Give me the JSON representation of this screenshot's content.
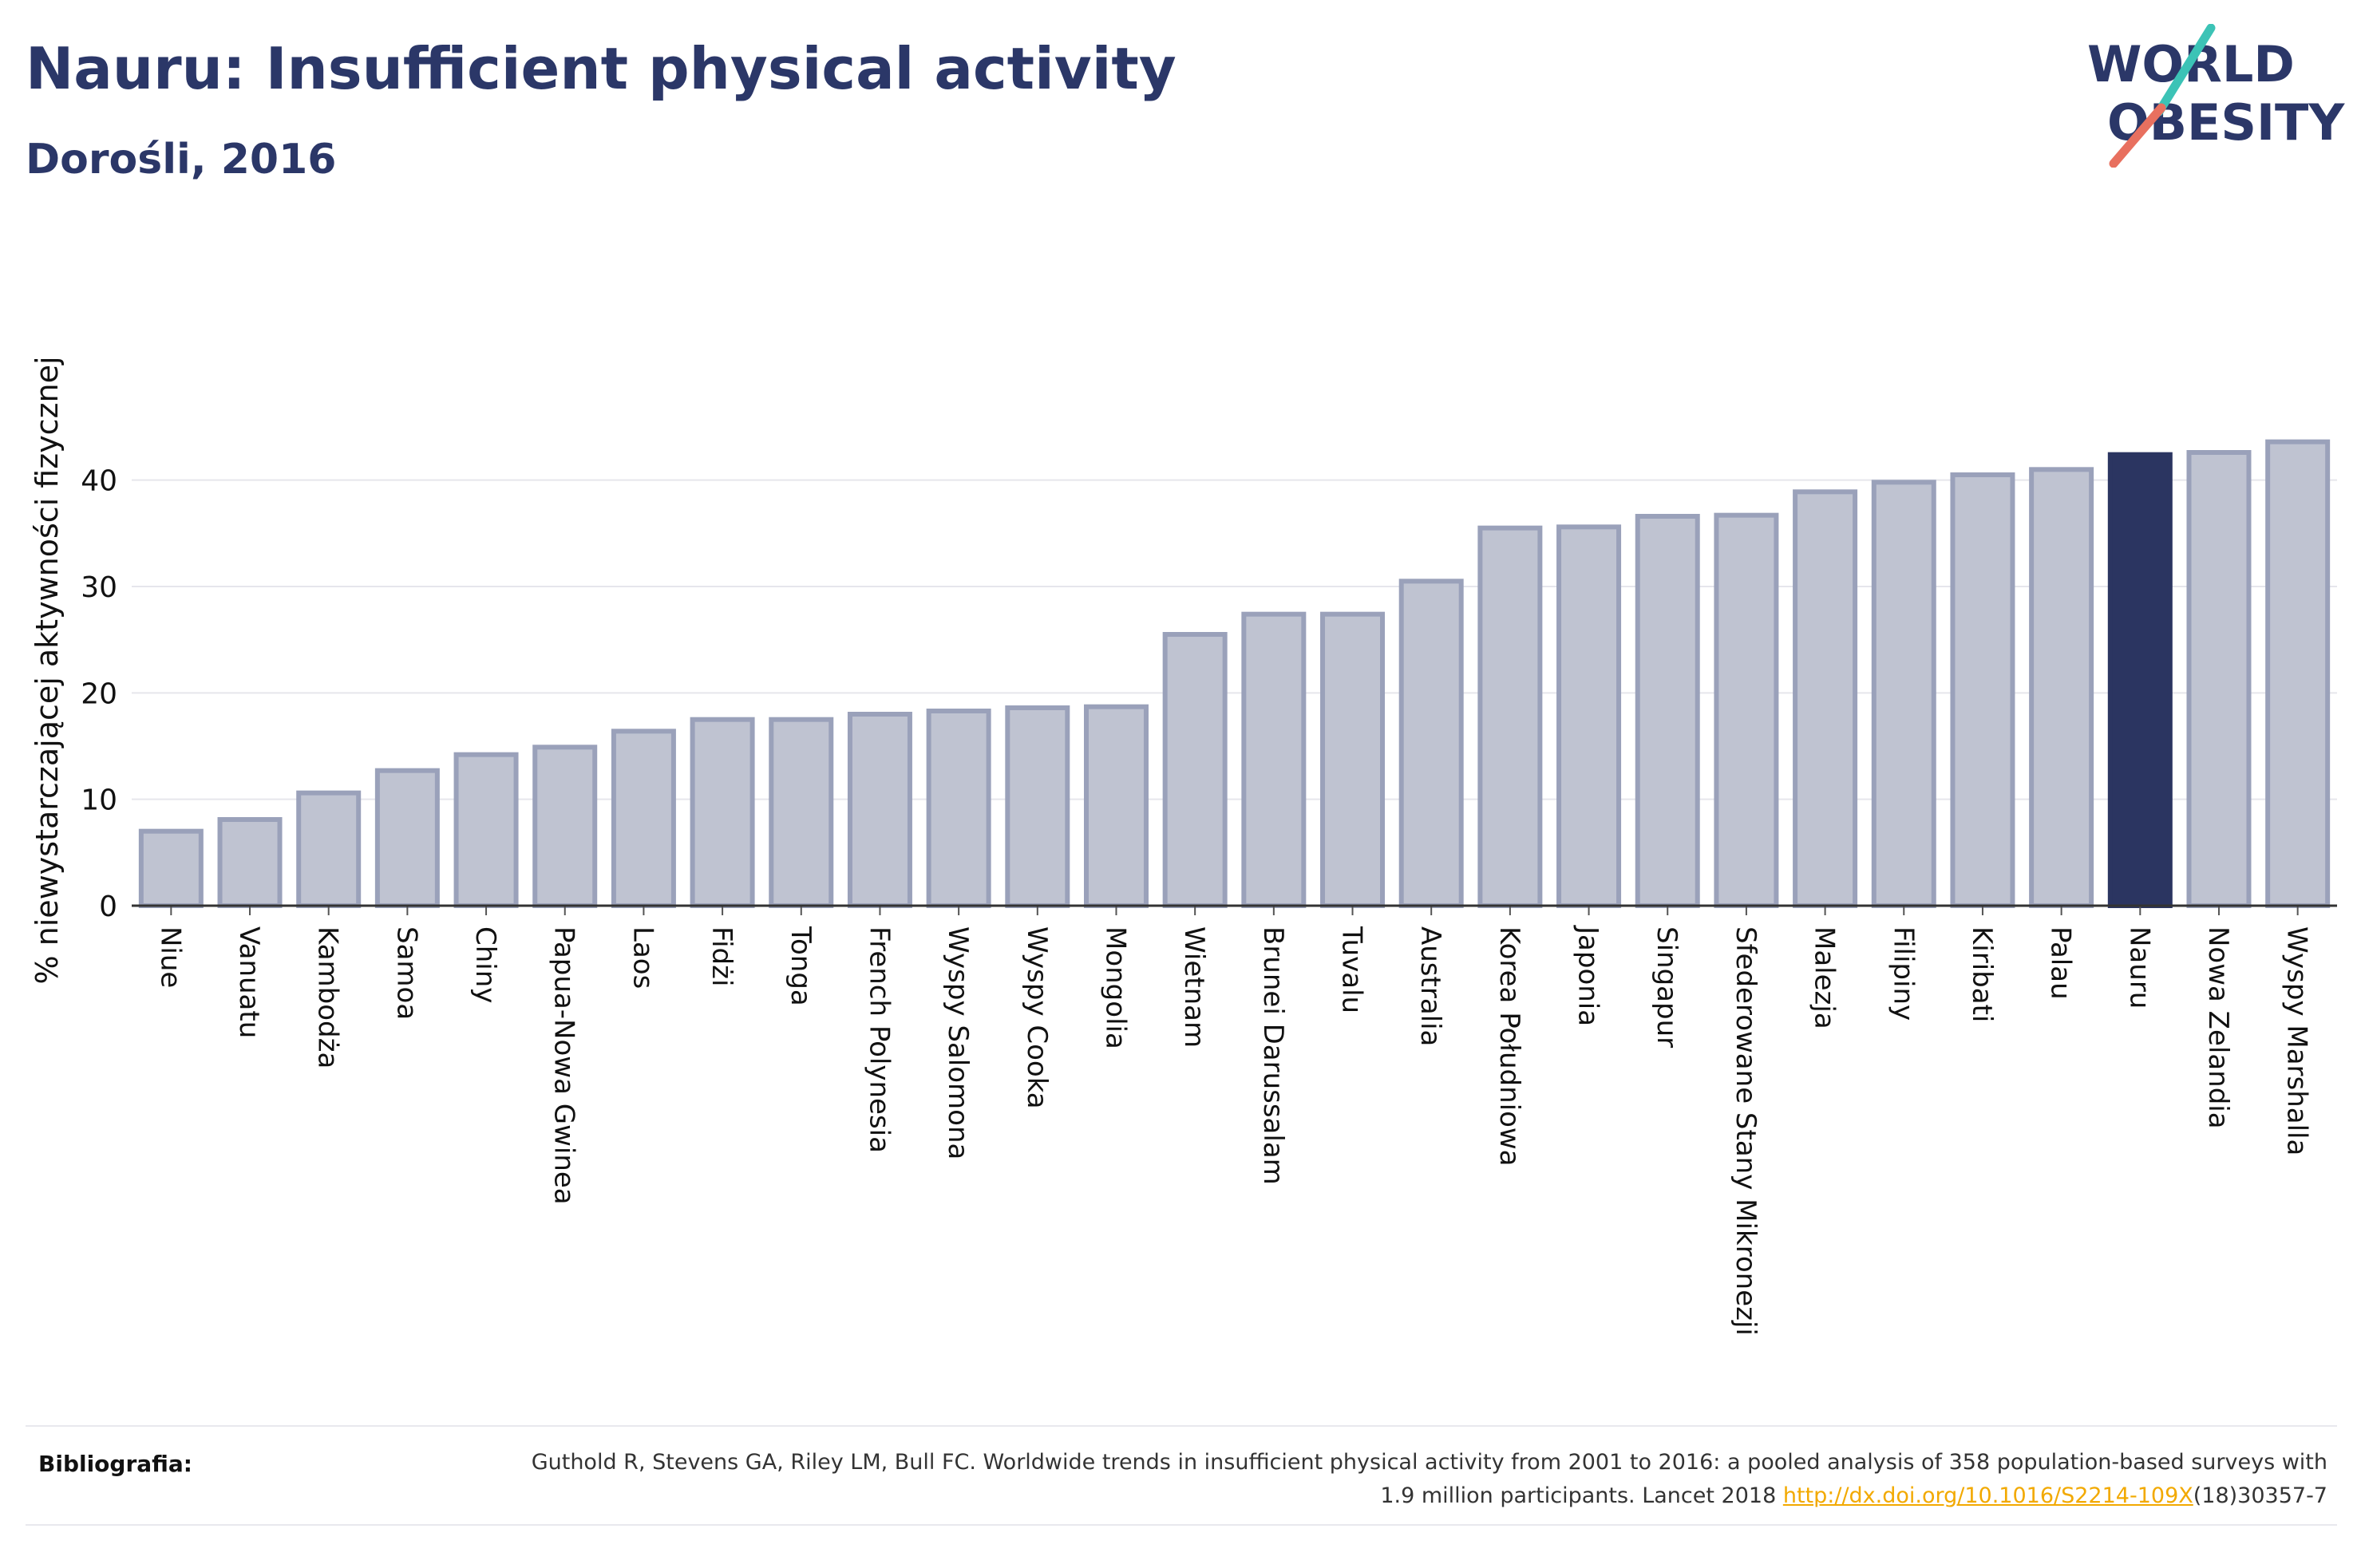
{
  "title": "Nauru: Insufficient physical activity",
  "subtitle": "Dorośli, 2016",
  "logo": {
    "line1": "WORLD",
    "line2": "OBESITY"
  },
  "references": {
    "label": "Bibliografia:",
    "text_before": "Guthold R, Stevens GA, Riley LM, Bull FC. Worldwide trends in insufficient physical activity from 2001 to 2016: a pooled analysis of 358 population-based surveys with 1.9 million participants. Lancet 2018 ",
    "link": "http://dx.doi.org/10.1016/S2214-109X",
    "text_after": "(18)30357-7"
  },
  "colors": {
    "bar": "#bfc3d1",
    "bar_border": "#9aa1ba",
    "highlight": "#2b3561",
    "title": "#2b3768",
    "logo_accent": "#3cc3b6",
    "logo_slash": "#e8705f"
  },
  "chart_data": {
    "type": "bar",
    "title": "Nauru: Insufficient physical activity",
    "subtitle": "Dorośli, 2016",
    "xlabel": "",
    "ylabel": "% niewystarczającej aktywności fizycznej",
    "ylim": [
      0,
      45
    ],
    "yticks": [
      0,
      10,
      20,
      30,
      40
    ],
    "grid": true,
    "highlight": "Nauru",
    "categories": [
      "Niue",
      "Vanuatu",
      "Kambodża",
      "Samoa",
      "Chiny",
      "Papua-Nowa Gwinea",
      "Laos",
      "Fidżi",
      "Tonga",
      "French Polynesia",
      "Wyspy Salomona",
      "Wyspy Cooka",
      "Mongolia",
      "Wietnam",
      "Brunei Darussalam",
      "Tuvalu",
      "Australia",
      "Korea Południowa",
      "Japonia",
      "Singapur",
      "Sfederowane Stany Mikronezji",
      "Malezja",
      "Filipiny",
      "Kiribati",
      "Palau",
      "Nauru",
      "Nowa Zelandia",
      "Wyspy Marshalla"
    ],
    "values": [
      7.0,
      8.1,
      10.6,
      12.7,
      14.2,
      14.9,
      16.4,
      17.5,
      17.5,
      18.0,
      18.3,
      18.6,
      18.7,
      25.5,
      27.4,
      27.4,
      30.5,
      35.5,
      35.6,
      36.6,
      36.7,
      38.9,
      39.8,
      40.5,
      41.0,
      42.4,
      42.6,
      43.6
    ]
  }
}
